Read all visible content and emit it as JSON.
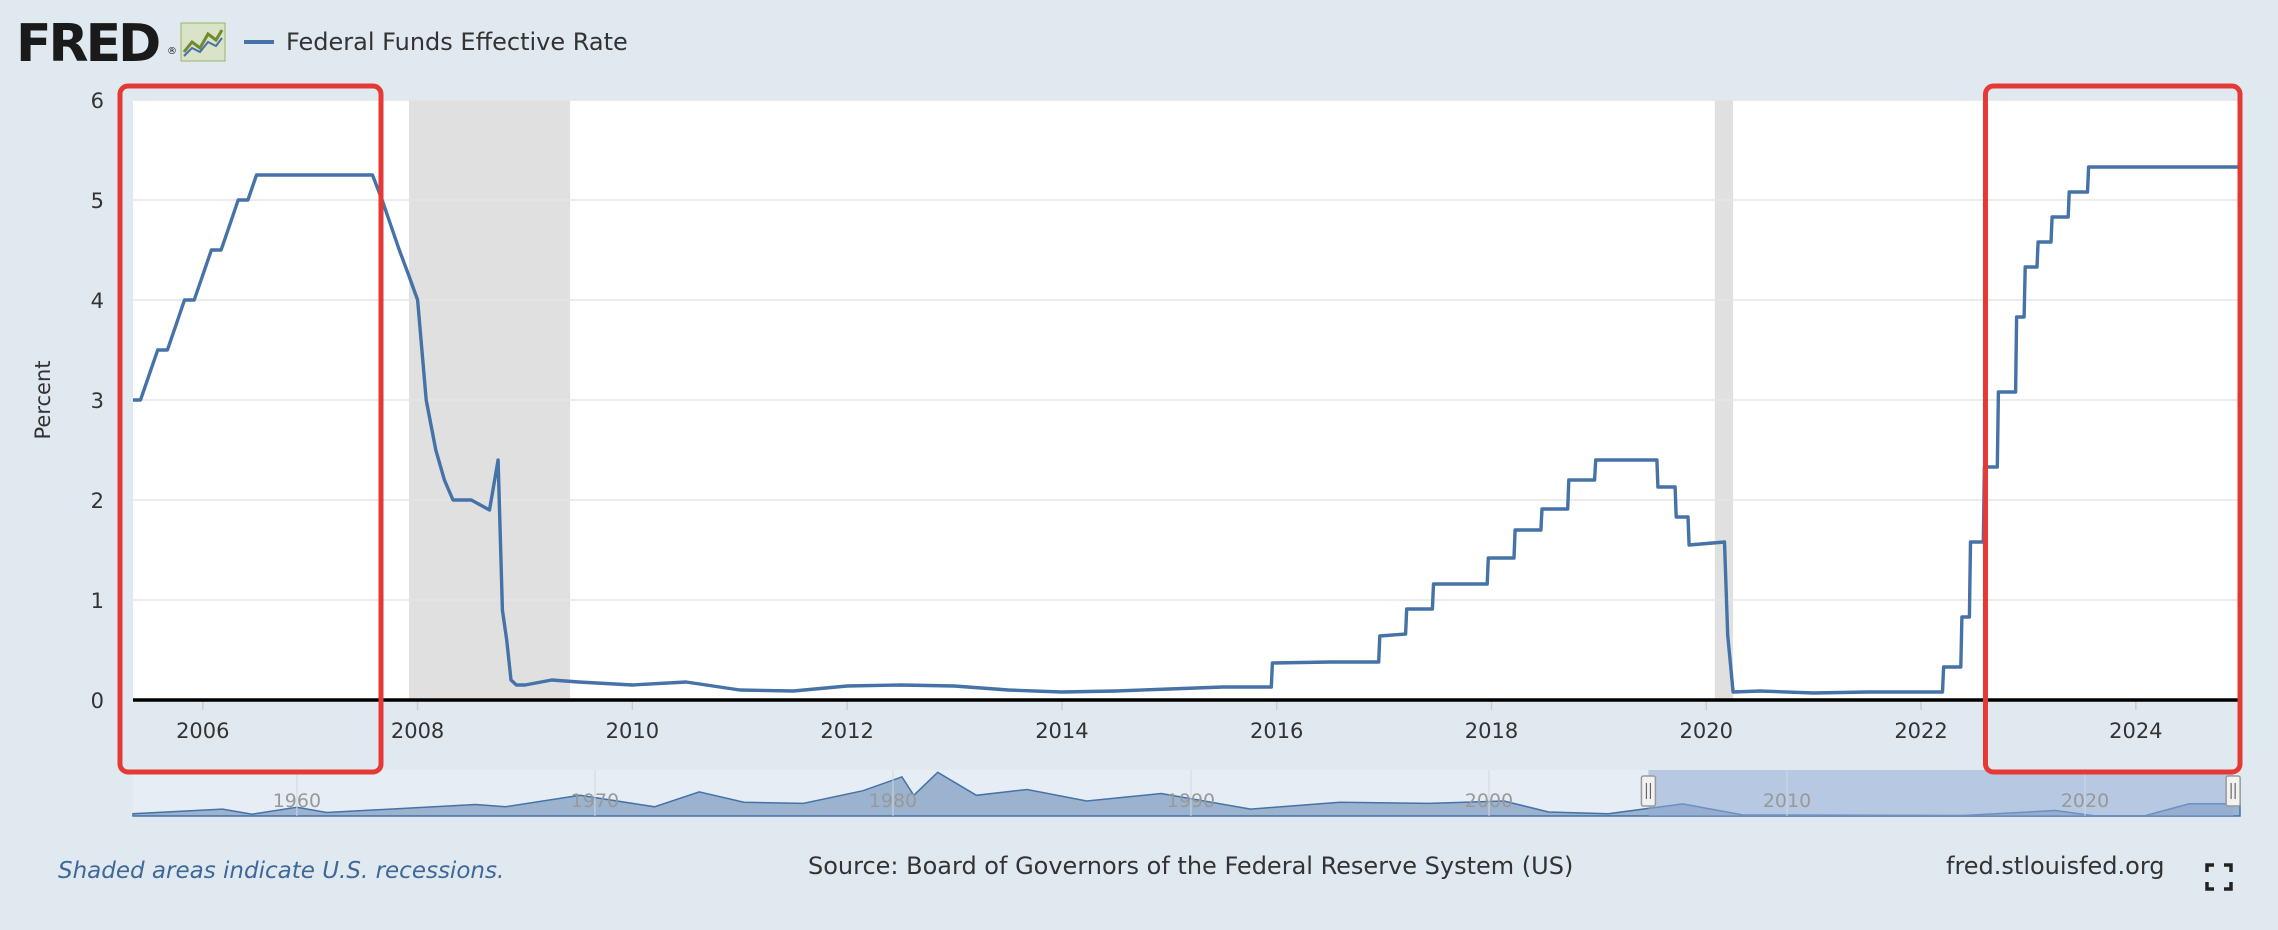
{
  "header": {
    "logo_text": "FRED",
    "logo_mark": "®",
    "legend_label": "Federal Funds Effective Rate"
  },
  "colors": {
    "series": "#4572a7",
    "recession": "#e0e0e0",
    "highlight": "#e53935",
    "background": "#e1e9f0"
  },
  "icons": [
    "fred-logo-graph-icon",
    "fullscreen-icon"
  ],
  "footer": {
    "note": "Shaded areas indicate U.S. recessions.",
    "source": "Source: Board of Governors of the Federal Reserve System (US)",
    "site": "fred.stlouisfed.org"
  },
  "navigator": {
    "tick_labels": [
      "1960",
      "1970",
      "1980",
      "1990",
      "2000",
      "2010",
      "2020"
    ]
  },
  "chart_data": {
    "type": "line",
    "title": "",
    "ylabel": "Percent",
    "xlabel": "",
    "ylim": [
      0,
      6
    ],
    "xlim": [
      2005.35,
      2024.97
    ],
    "y_ticks": [
      0,
      1,
      2,
      3,
      4,
      5,
      6
    ],
    "x_ticks": [
      2006,
      2008,
      2010,
      2012,
      2014,
      2016,
      2018,
      2020,
      2022,
      2024
    ],
    "grid": true,
    "legend": "top-left",
    "recessions": [
      [
        2007.92,
        2009.42
      ],
      [
        2020.08,
        2020.25
      ]
    ],
    "highlight_boxes": [
      [
        2005.35,
        2007.7
      ],
      [
        2022.6,
        2024.97
      ]
    ],
    "series": [
      {
        "name": "Federal Funds Effective Rate",
        "x": [
          2005.35,
          2005.42,
          2005.5,
          2005.58,
          2005.67,
          2005.75,
          2005.83,
          2005.92,
          2006.0,
          2006.08,
          2006.17,
          2006.25,
          2006.33,
          2006.42,
          2006.5,
          2006.58,
          2006.75,
          2007.0,
          2007.25,
          2007.5,
          2007.58,
          2007.67,
          2007.75,
          2007.83,
          2007.92,
          2008.0,
          2008.08,
          2008.17,
          2008.25,
          2008.33,
          2008.5,
          2008.67,
          2008.75,
          2008.79,
          2008.83,
          2008.87,
          2008.92,
          2009.0,
          2009.25,
          2009.5,
          2010.0,
          2010.5,
          2011.0,
          2011.5,
          2012.0,
          2012.5,
          2013.0,
          2013.5,
          2014.0,
          2014.5,
          2015.0,
          2015.5,
          2015.95,
          2015.96,
          2016.5,
          2016.95,
          2016.96,
          2017.2,
          2017.21,
          2017.45,
          2017.46,
          2017.96,
          2017.97,
          2018.21,
          2018.22,
          2018.46,
          2018.47,
          2018.71,
          2018.72,
          2018.96,
          2018.97,
          2019.54,
          2019.55,
          2019.71,
          2019.72,
          2019.83,
          2019.84,
          2020.17,
          2020.2,
          2020.25,
          2020.5,
          2021.0,
          2021.5,
          2022.0,
          2022.2,
          2022.21,
          2022.37,
          2022.38,
          2022.45,
          2022.46,
          2022.58,
          2022.59,
          2022.71,
          2022.72,
          2022.88,
          2022.89,
          2022.96,
          2022.97,
          2023.08,
          2023.09,
          2023.21,
          2023.22,
          2023.37,
          2023.38,
          2023.55,
          2023.56,
          2024.7,
          2024.71,
          2024.88,
          2024.89,
          2024.97
        ],
        "y": [
          3.0,
          3.0,
          3.25,
          3.5,
          3.5,
          3.75,
          4.0,
          4.0,
          4.25,
          4.5,
          4.5,
          4.75,
          5.0,
          5.0,
          5.25,
          5.25,
          5.25,
          5.25,
          5.25,
          5.25,
          5.25,
          5.0,
          4.75,
          4.5,
          4.24,
          4.0,
          3.0,
          2.5,
          2.2,
          2.0,
          2.0,
          1.9,
          2.4,
          0.9,
          0.6,
          0.2,
          0.15,
          0.15,
          0.2,
          0.18,
          0.15,
          0.18,
          0.1,
          0.09,
          0.14,
          0.15,
          0.14,
          0.1,
          0.08,
          0.09,
          0.11,
          0.13,
          0.13,
          0.37,
          0.38,
          0.38,
          0.64,
          0.66,
          0.91,
          0.91,
          1.16,
          1.16,
          1.42,
          1.42,
          1.7,
          1.7,
          1.91,
          1.91,
          2.2,
          2.2,
          2.4,
          2.4,
          2.13,
          2.13,
          1.83,
          1.83,
          1.55,
          1.58,
          0.65,
          0.08,
          0.09,
          0.07,
          0.08,
          0.08,
          0.08,
          0.33,
          0.33,
          0.83,
          0.83,
          1.58,
          1.58,
          2.33,
          2.33,
          3.08,
          3.08,
          3.83,
          3.83,
          4.33,
          4.33,
          4.58,
          4.58,
          4.83,
          4.83,
          5.08,
          5.08,
          5.33,
          5.33,
          5.33,
          5.33,
          5.33,
          5.33
        ]
      }
    ]
  }
}
